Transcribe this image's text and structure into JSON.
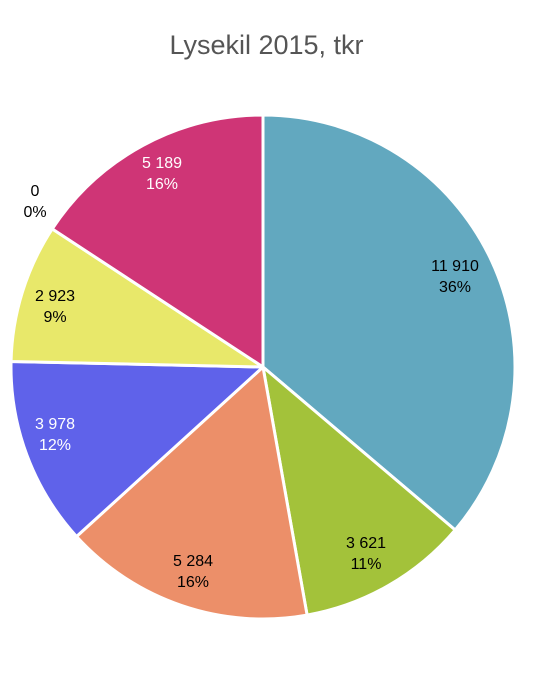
{
  "chart_data": {
    "type": "pie",
    "title": "Lysekil 2015, tkr",
    "slices": [
      {
        "value": 11910,
        "value_label": "11 910",
        "percent_label": "36%",
        "color": "#62a8bf",
        "label_color": "#000000"
      },
      {
        "value": 3621,
        "value_label": "3 621",
        "percent_label": "11%",
        "color": "#a3c23a",
        "label_color": "#000000"
      },
      {
        "value": 5284,
        "value_label": "5 284",
        "percent_label": "16%",
        "color": "#ec8f69",
        "label_color": "#000000"
      },
      {
        "value": 3978,
        "value_label": "3 978",
        "percent_label": "12%",
        "color": "#5f62ea",
        "label_color": "#ffffff"
      },
      {
        "value": 2923,
        "value_label": "2 923",
        "percent_label": "9%",
        "color": "#e8e86a",
        "label_color": "#000000"
      },
      {
        "value": 0,
        "value_label": "0",
        "percent_label": "0%",
        "color": "#7b3f9e",
        "label_color": "#000000"
      },
      {
        "value": 5189,
        "value_label": "5 189",
        "percent_label": "16%",
        "color": "#cf3576",
        "label_color": "#ffffff"
      }
    ],
    "start_direction": "top",
    "rotation": "clockwise",
    "legend": "none"
  }
}
